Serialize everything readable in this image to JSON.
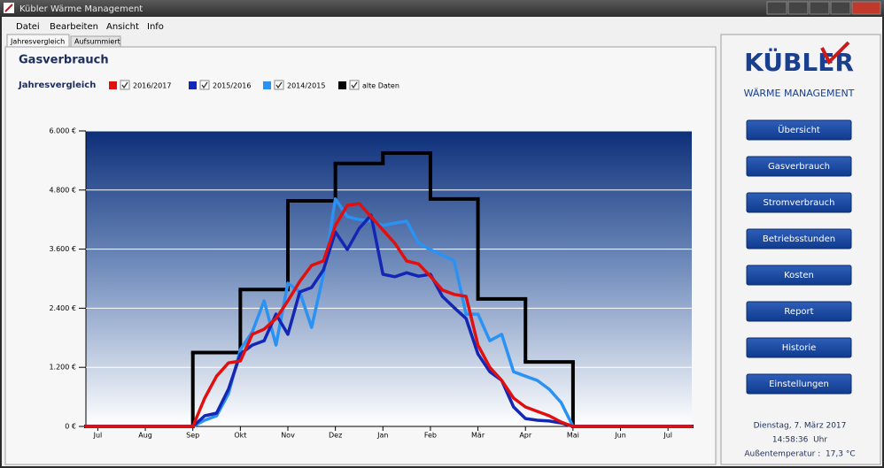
{
  "window": {
    "title": "Kübler Wärme Management"
  },
  "menu": [
    "Datei",
    "Bearbeiten",
    "Ansicht",
    "Info"
  ],
  "tabs": [
    "Jahresvergleich",
    "Aufsummiert"
  ],
  "heading": "Gasverbrauch",
  "chart_data": {
    "type": "line",
    "legend_title": "Jahresvergleich",
    "grid": true,
    "x": [
      -0.25,
      2,
      2.25,
      2.5,
      2.75,
      3,
      3.25,
      3.5,
      3.75,
      4,
      4.25,
      4.5,
      4.75,
      5,
      5.25,
      5.5,
      5.75,
      6,
      6.25,
      6.5,
      6.75,
      7,
      7.25,
      7.5,
      7.75,
      8,
      8.25,
      8.5,
      8.75,
      9,
      9.25,
      9.5,
      9.75,
      10,
      12.5
    ],
    "xlim": [
      -0.25,
      12.5
    ],
    "xticks": [
      {
        "value": 0,
        "label": "Jul"
      },
      {
        "value": 1,
        "label": "Aug"
      },
      {
        "value": 2,
        "label": "Sep"
      },
      {
        "value": 3,
        "label": "Okt"
      },
      {
        "value": 4,
        "label": "Nov"
      },
      {
        "value": 5,
        "label": "Dez"
      },
      {
        "value": 6,
        "label": "Jan"
      },
      {
        "value": 7,
        "label": "Feb"
      },
      {
        "value": 8,
        "label": "Mär"
      },
      {
        "value": 9,
        "label": "Apr"
      },
      {
        "value": 10,
        "label": "Mai"
      },
      {
        "value": 11,
        "label": "Jun"
      },
      {
        "value": 12,
        "label": "Jul"
      }
    ],
    "ylim": [
      0,
      6000
    ],
    "yticks": [
      {
        "value": 0,
        "label": "0 €"
      },
      {
        "value": 1200,
        "label": "1.200 €"
      },
      {
        "value": 2400,
        "label": "2.400 €"
      },
      {
        "value": 3600,
        "label": "3.600 €"
      },
      {
        "value": 4800,
        "label": "4.800 €"
      },
      {
        "value": 6000,
        "label": "6.000 €"
      }
    ],
    "series": [
      {
        "name": "2016/2017",
        "color": "#e01010",
        "values": [
          0,
          0,
          575,
          1020,
          1290,
          1330,
          1870,
          1975,
          2190,
          2550,
          2945,
          3270,
          3360,
          4080,
          4490,
          4525,
          4260,
          3990,
          3720,
          3360,
          3300,
          3050,
          2770,
          2680,
          2640,
          1650,
          1200,
          935,
          575,
          395,
          305,
          215,
          90,
          0,
          0
        ]
      },
      {
        "name": "2015/2016",
        "color": "#1426b4",
        "values": [
          0,
          0,
          215,
          270,
          755,
          1470,
          1650,
          1740,
          2280,
          1870,
          2730,
          2820,
          3180,
          3950,
          3590,
          4020,
          4290,
          3090,
          3040,
          3120,
          3050,
          3090,
          2640,
          2410,
          2190,
          1470,
          1110,
          935,
          395,
          160,
          125,
          110,
          70,
          0,
          0
        ]
      },
      {
        "name": "2014/2015",
        "color": "#2a92f2",
        "values": [
          0,
          0,
          125,
          215,
          665,
          1560,
          1920,
          2550,
          1650,
          2910,
          2730,
          2010,
          3090,
          4620,
          4260,
          4200,
          4170,
          4080,
          4130,
          4170,
          3720,
          3590,
          3480,
          3360,
          2280,
          2280,
          1740,
          1870,
          1110,
          1020,
          935,
          755,
          485,
          0,
          0
        ]
      },
      {
        "name": "alte Daten",
        "color": "#000000",
        "drawstyle": "steps-post",
        "x": [
          -0.25,
          2,
          3,
          4,
          5,
          6,
          7,
          8,
          9,
          10
        ],
        "values": [
          0,
          1500,
          2780,
          4580,
          5340,
          5550,
          4620,
          2590,
          1310,
          0
        ]
      }
    ]
  },
  "sidebar": {
    "logo": "KÜBLER",
    "subtitle": "WÄRME MANAGEMENT",
    "buttons": [
      "Übersicht",
      "Gasverbrauch",
      "Stromverbrauch",
      "Betriebsstunden",
      "Kosten",
      "Report",
      "Historie",
      "Einstellungen"
    ],
    "date": "Dienstag, 7. März 2017",
    "time": "14:58:36  Uhr",
    "temperature": "Außentemperatur :  17,3 °C"
  }
}
